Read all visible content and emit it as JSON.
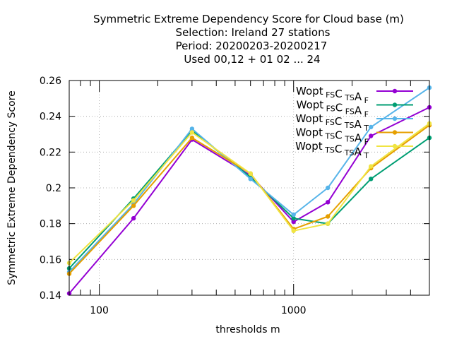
{
  "chart_data": {
    "type": "line",
    "title_lines": [
      "Symmetric Extreme Dependency Score  for Cloud base (m)",
      "Selection: Ireland     27 stations",
      "Period: 20200203-20200217",
      "Used  00,12  + 01 02 ... 24"
    ],
    "xlabel": "thresholds m",
    "ylabel": "Symmetric Extreme Dependency Score",
    "xscale": "log",
    "xlim": [
      70,
      5000
    ],
    "ylim": [
      0.14,
      0.26
    ],
    "x_tick_labels": [
      {
        "value": 100,
        "label": "100"
      },
      {
        "value": 1000,
        "label": "1000"
      }
    ],
    "y_tick_labels": [
      {
        "value": 0.14,
        "label": "0.14"
      },
      {
        "value": 0.16,
        "label": "0.16"
      },
      {
        "value": 0.18,
        "label": "0.18"
      },
      {
        "value": 0.2,
        "label": "0.2"
      },
      {
        "value": 0.22,
        "label": "0.22"
      },
      {
        "value": 0.24,
        "label": "0.24"
      },
      {
        "value": 0.26,
        "label": "0.26"
      }
    ],
    "grid": true,
    "legend_position": "top-right",
    "x": [
      70,
      150,
      300,
      600,
      1000,
      1500,
      2500,
      5000
    ],
    "series": [
      {
        "name": "Wopt FS CTS AF",
        "base": [
          "Wopt",
          "C",
          "A"
        ],
        "subs": [
          "FS",
          "TS",
          "F"
        ],
        "color": "#9400d3",
        "marker": "filled-circle",
        "values": [
          0.141,
          0.183,
          0.227,
          0.207,
          0.181,
          0.192,
          0.229,
          0.245
        ]
      },
      {
        "name": "Wopt FS CFS AF",
        "base": [
          "Wopt",
          "C",
          "A"
        ],
        "subs": [
          "FS",
          "FS",
          "F"
        ],
        "color": "#009e73",
        "marker": "filled-circle",
        "values": [
          0.155,
          0.194,
          0.232,
          0.206,
          0.183,
          0.18,
          0.205,
          0.228
        ]
      },
      {
        "name": "Wopt FS CTS AT",
        "base": [
          "Wopt",
          "C",
          "A"
        ],
        "subs": [
          "FS",
          "TS",
          "T"
        ],
        "color": "#56b4e9",
        "marker": "filled-circle",
        "values": [
          0.153,
          0.191,
          0.233,
          0.205,
          0.185,
          0.2,
          0.234,
          0.256
        ]
      },
      {
        "name": "Wopt TS CTS AF",
        "base": [
          "Wopt",
          "C",
          "A"
        ],
        "subs": [
          "TS",
          "TS",
          "F"
        ],
        "color": "#e69f00",
        "marker": "filled-circle",
        "values": [
          0.152,
          0.19,
          0.228,
          0.208,
          0.177,
          0.184,
          0.211,
          0.235
        ]
      },
      {
        "name": "Wopt TS CTS AT",
        "base": [
          "Wopt",
          "C",
          "A"
        ],
        "subs": [
          "TS",
          "TS",
          "T"
        ],
        "color": "#f0e442",
        "marker": "filled-circle",
        "values": [
          0.158,
          0.193,
          0.231,
          0.208,
          0.176,
          0.18,
          0.212,
          0.236
        ]
      }
    ]
  }
}
